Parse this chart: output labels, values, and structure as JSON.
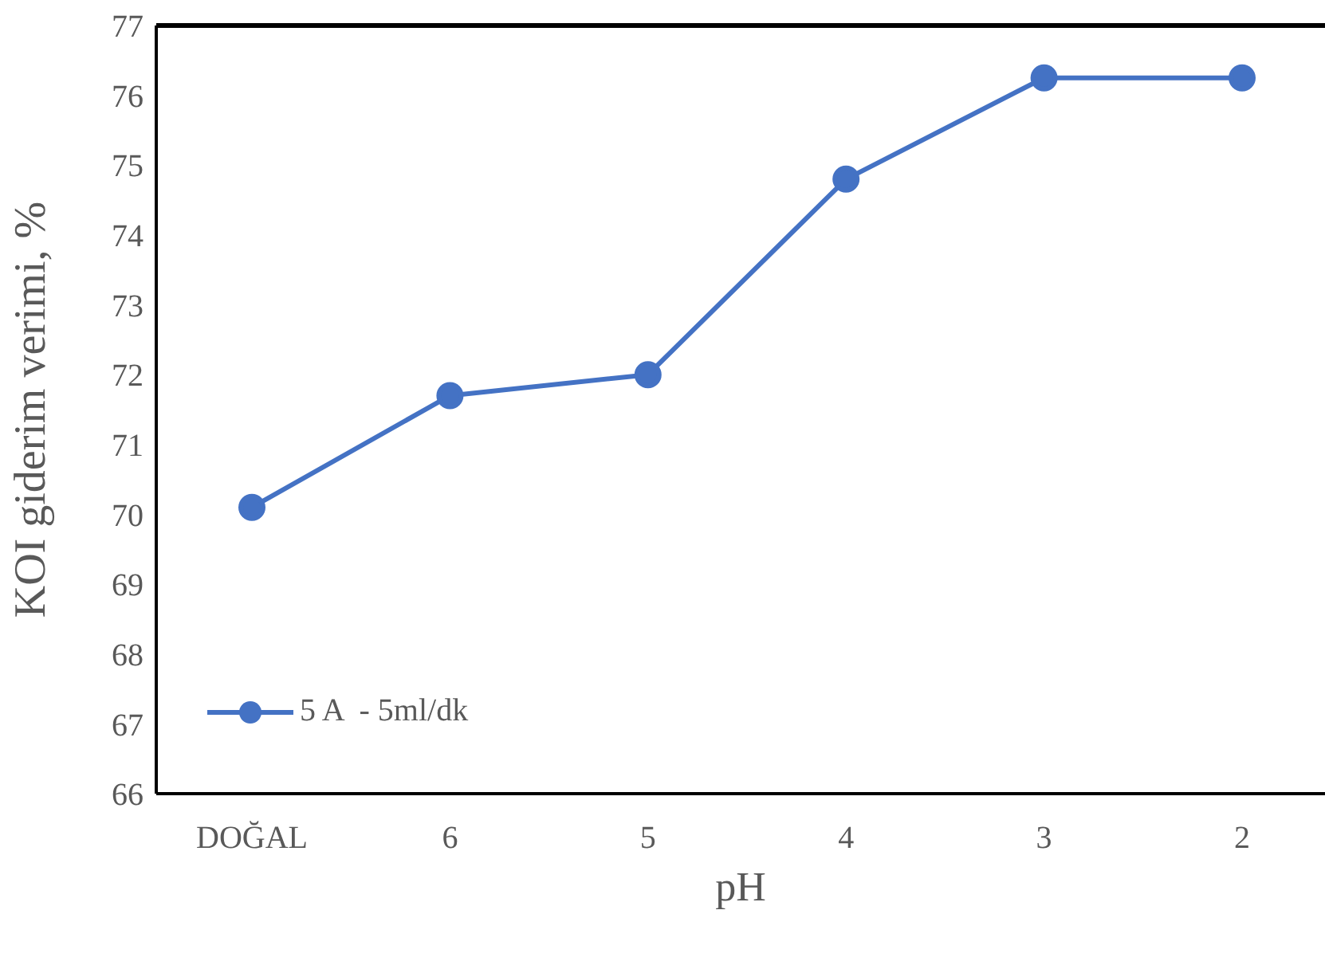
{
  "chart_data": {
    "type": "line",
    "xlabel": "pH",
    "ylabel": "KOİ giderim verimi, %",
    "categories": [
      "DOĞAL",
      "6",
      "5",
      "4",
      "3",
      "2"
    ],
    "series": [
      {
        "name": "5 A  - 5ml/dk",
        "color": "#4472c4",
        "values": [
          70.1,
          71.7,
          72.0,
          74.8,
          76.25,
          76.25
        ]
      }
    ],
    "ylim": [
      66,
      77
    ],
    "yticks": [
      66,
      67,
      68,
      69,
      70,
      71,
      72,
      73,
      74,
      75,
      76,
      77
    ],
    "grid": false,
    "legend": "bottom left",
    "marker": "circle",
    "line_style": "solid"
  }
}
